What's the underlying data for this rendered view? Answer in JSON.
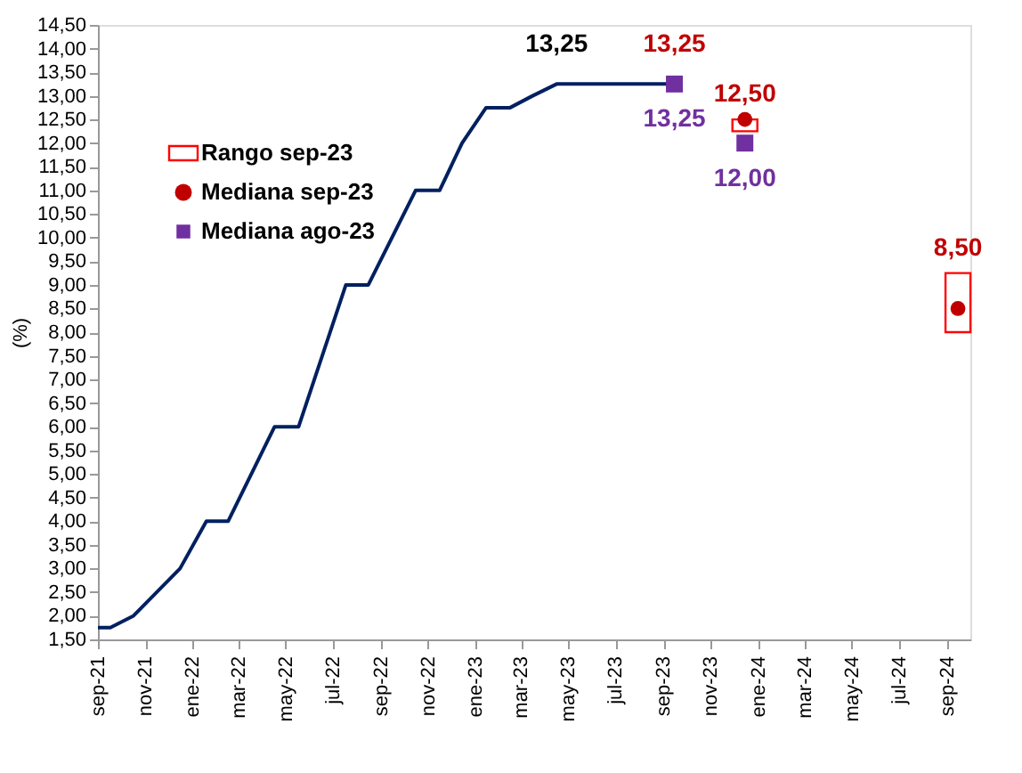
{
  "chart_data": {
    "type": "line",
    "ylabel": "(%)",
    "xlim": [
      "2021-09-01",
      "2024-10-01"
    ],
    "xticks": [
      {
        "value": "2021-09-01",
        "label": "sep-21"
      },
      {
        "value": "2021-11-01",
        "label": "nov-21"
      },
      {
        "value": "2022-01-01",
        "label": "ene-22"
      },
      {
        "value": "2022-03-01",
        "label": "mar-22"
      },
      {
        "value": "2022-05-01",
        "label": "may-22"
      },
      {
        "value": "2022-07-01",
        "label": "jul-22"
      },
      {
        "value": "2022-09-01",
        "label": "sep-22"
      },
      {
        "value": "2022-11-01",
        "label": "nov-22"
      },
      {
        "value": "2023-01-01",
        "label": "ene-23"
      },
      {
        "value": "2023-03-01",
        "label": "mar-23"
      },
      {
        "value": "2023-05-01",
        "label": "may-23"
      },
      {
        "value": "2023-07-01",
        "label": "jul-23"
      },
      {
        "value": "2023-09-01",
        "label": "sep-23"
      },
      {
        "value": "2023-11-01",
        "label": "nov-23"
      },
      {
        "value": "2024-01-01",
        "label": "ene-24"
      },
      {
        "value": "2024-03-01",
        "label": "mar-24"
      },
      {
        "value": "2024-05-01",
        "label": "may-24"
      },
      {
        "value": "2024-07-01",
        "label": "jul-24"
      },
      {
        "value": "2024-09-01",
        "label": "sep-24"
      }
    ],
    "ylim": [
      1.5,
      14.5
    ],
    "yticks": [
      {
        "value": 1.5,
        "label": "1,50"
      },
      {
        "value": 2,
        "label": "2,00"
      },
      {
        "value": 2.5,
        "label": "2,50"
      },
      {
        "value": 3,
        "label": "3,00"
      },
      {
        "value": 3.5,
        "label": "3,50"
      },
      {
        "value": 4,
        "label": "4,00"
      },
      {
        "value": 4.5,
        "label": "4,50"
      },
      {
        "value": 5,
        "label": "5,00"
      },
      {
        "value": 5.5,
        "label": "5,50"
      },
      {
        "value": 6,
        "label": "6,00"
      },
      {
        "value": 6.5,
        "label": "6,50"
      },
      {
        "value": 7,
        "label": "7,00"
      },
      {
        "value": 7.5,
        "label": "7,50"
      },
      {
        "value": 8,
        "label": "8,00"
      },
      {
        "value": 8.5,
        "label": "8,50"
      },
      {
        "value": 9,
        "label": "9,00"
      },
      {
        "value": 9.5,
        "label": "9,50"
      },
      {
        "value": 10,
        "label": "10,00"
      },
      {
        "value": 10.5,
        "label": "10,50"
      },
      {
        "value": 11,
        "label": "11,00"
      },
      {
        "value": 11.5,
        "label": "11,50"
      },
      {
        "value": 12,
        "label": "12,00"
      },
      {
        "value": 12.5,
        "label": "12,50"
      },
      {
        "value": 13,
        "label": "13,00"
      },
      {
        "value": 13.5,
        "label": "13,50"
      },
      {
        "value": 14,
        "label": "14,00"
      },
      {
        "value": 14.5,
        "label": "14,50"
      }
    ],
    "grid": false,
    "legend": "top left",
    "series": [
      {
        "color": "#002060",
        "x": [
          "2021-09-01",
          "2021-09-17",
          "2021-10-17",
          "2021-12-16",
          "2022-01-19",
          "2022-02-16",
          "2022-04-17",
          "2022-05-18",
          "2022-07-18",
          "2022-08-16",
          "2022-10-16",
          "2022-11-16",
          "2022-12-15",
          "2023-01-15",
          "2023-02-15",
          "2023-03-16",
          "2023-04-16",
          "2023-09-15"
        ],
        "values": [
          1.75,
          1.75,
          2.0,
          3.0,
          4.0,
          4.0,
          6.0,
          6.0,
          9.0,
          9.0,
          11.0,
          11.0,
          12.0,
          12.75,
          12.75,
          13.0,
          13.25,
          13.25
        ]
      },
      {
        "type": "bar",
        "name": "Rango sep-23",
        "color": "#ff0000",
        "x": [
          "2023-12-15",
          "2024-09-15"
        ],
        "base": [
          12.25,
          8.0
        ],
        "values": [
          0.25,
          1.25
        ]
      },
      {
        "type": "scatter",
        "name": "Mediana sep-23",
        "color": "#c00000",
        "marker": "circle",
        "x": [
          "2023-12-15",
          "2024-09-15"
        ],
        "values": [
          12.5,
          8.5
        ],
        "value_labels": [
          "12,50",
          "8,50"
        ]
      },
      {
        "type": "scatter",
        "name": "Mediana ago-23",
        "color": "#7030a0",
        "marker": "square",
        "x": [
          "2023-09-15",
          "2023-12-15"
        ],
        "values": [
          13.25,
          12.0
        ],
        "value_labels": [
          "13,25",
          "12,00"
        ]
      }
    ],
    "annotations": [
      {
        "text": "13,25",
        "x": "2023-04-16",
        "y": 13.25
      },
      {
        "text": "13,25",
        "x": "2023-09-15",
        "y": 13.25
      }
    ]
  }
}
